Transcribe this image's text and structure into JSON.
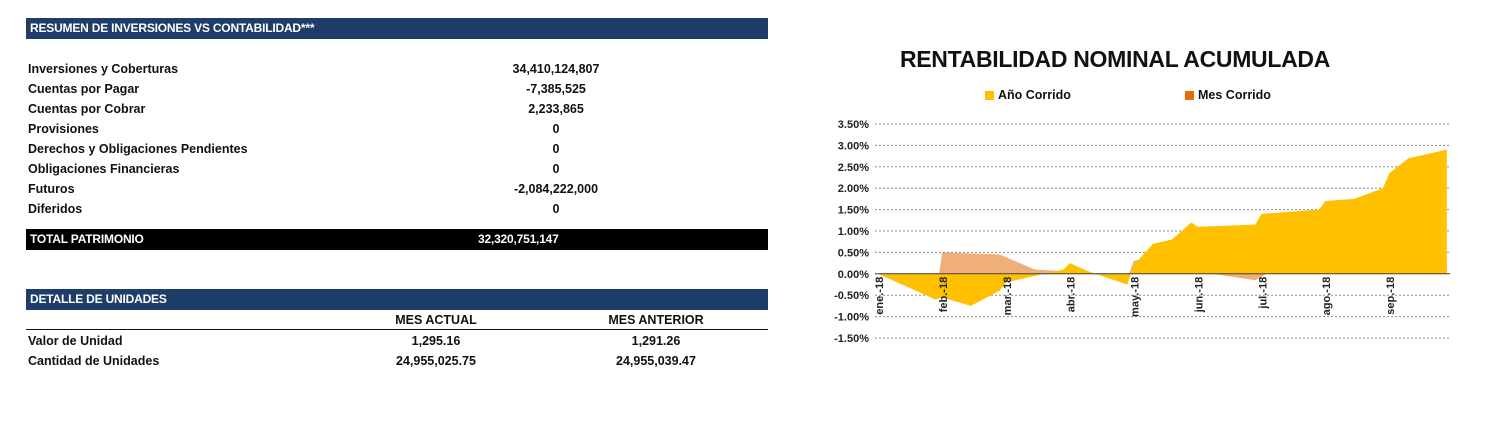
{
  "summary": {
    "title": "RESUMEN DE INVERSIONES VS CONTABILIDAD***",
    "rows": [
      {
        "label": "Inversiones y Coberturas",
        "value": "34,410,124,807"
      },
      {
        "label": "Cuentas por Pagar",
        "value": "-7,385,525"
      },
      {
        "label": "Cuentas por Cobrar",
        "value": "2,233,865"
      },
      {
        "label": "Provisiones",
        "value": "0"
      },
      {
        "label": "Derechos y Obligaciones Pendientes",
        "value": "0"
      },
      {
        "label": "Obligaciones Financieras",
        "value": "0"
      },
      {
        "label": "Futuros",
        "value": "-2,084,222,000"
      },
      {
        "label": "Diferidos",
        "value": "0"
      }
    ],
    "total_label": "TOTAL PATRIMONIO",
    "total_value": "32,320,751,147"
  },
  "units": {
    "title": "DETALLE DE UNIDADES",
    "col_current": "MES ACTUAL",
    "col_previous": "MES ANTERIOR",
    "rows": [
      {
        "label": "Valor de Unidad",
        "current": "1,295.16",
        "previous": "1,291.26"
      },
      {
        "label": "Cantidad de Unidades",
        "current": "24,955,025.75",
        "previous": "24,955,039.47"
      }
    ]
  },
  "chart_data": {
    "type": "area",
    "title": "RENTABILIDAD NOMINAL ACUMULADA",
    "legend_position": "top",
    "grid": true,
    "ylim": [
      -1.5,
      3.5
    ],
    "yticks": [
      "3.50%",
      "3.00%",
      "2.50%",
      "2.00%",
      "1.50%",
      "1.00%",
      "0.50%",
      "0.00%",
      "-0.50%",
      "-1.00%",
      "-1.50%"
    ],
    "x_labels": [
      "ene.-18",
      "feb.-18",
      "mar.-18",
      "abr.-18",
      "may.-18",
      "jun.-18",
      "jul.-18",
      "ago.-18",
      "sep.-18"
    ],
    "series": [
      {
        "name": "Año Corrido",
        "color": "#ffc000",
        "x": [
          "ene.-18",
          "ene.-18",
          "feb.-18",
          "feb.-18",
          "feb.-18",
          "mar.-18",
          "mar.-18",
          "abr.-18",
          "abr.-18",
          "abr.-18",
          "abr.-18",
          "may.-18",
          "may.-18",
          "may.-18",
          "may.-18",
          "jun.-18",
          "jun.-18",
          "jul.-18",
          "jul.-18",
          "ago.-18",
          "ago.-18",
          "ago.-18",
          "sep.-18",
          "sep.-18",
          "sep.-18",
          "sep.-18"
        ],
        "values": [
          0.0,
          -0.6,
          -0.55,
          -0.75,
          -0.4,
          -0.2,
          0.1,
          0.25,
          0.05,
          -0.1,
          -0.25,
          0.2,
          0.7,
          0.8,
          1.2,
          1.1,
          1.15,
          1.4,
          1.5,
          1.7,
          1.75,
          2.0,
          2.35,
          2.7,
          2.8,
          2.9
        ]
      },
      {
        "name": "Mes Corrido",
        "color": "#e46c0a",
        "x": [
          "ene.-18",
          "ene.-18",
          "feb.-18",
          "feb.-18",
          "mar.-18",
          "abr.-18",
          "abr.-18",
          "may.-18",
          "may.-18",
          "jun.-18",
          "jun.-18",
          "jul.-18",
          "ago.-18",
          "ago.-18",
          "sep.-18",
          "sep.-18"
        ],
        "values": [
          0.0,
          -0.6,
          0.5,
          0.45,
          0.1,
          0.05,
          -0.1,
          0.3,
          0.6,
          0.05,
          -0.15,
          0.3,
          0.2,
          0.7,
          0.85,
          0.3
        ]
      }
    ]
  }
}
